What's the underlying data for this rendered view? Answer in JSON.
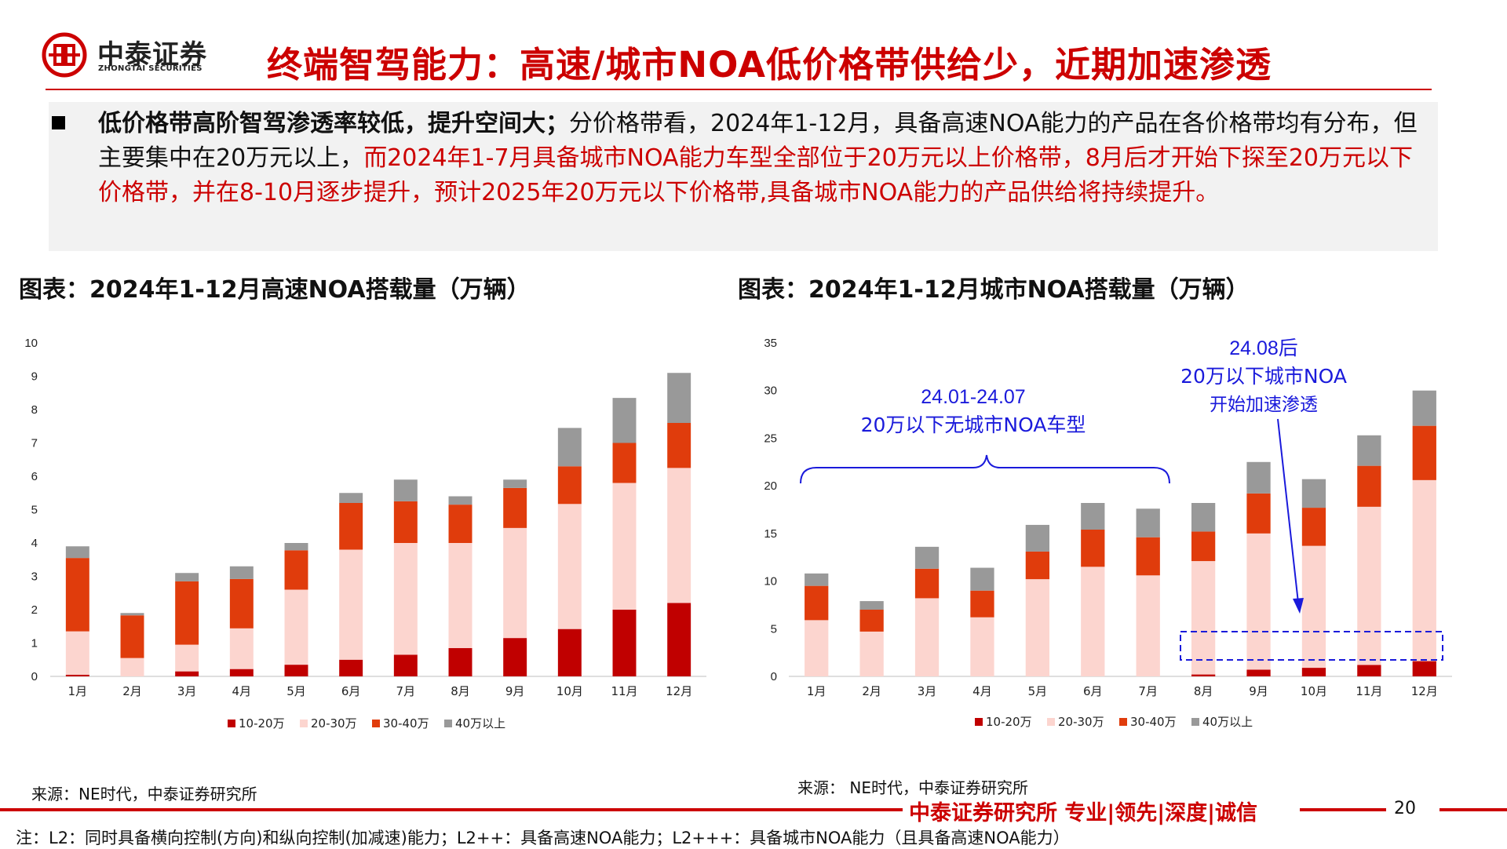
{
  "header": {
    "logo_cn": "中泰证券",
    "logo_en": "ZHONGTAI SECURITIES",
    "title": "终端智驾能力：高速/城市NOA低价格带供给少，近期加速渗透"
  },
  "summary": {
    "bold": "低价格带高阶智驾渗透率较低，提升空间大；",
    "normal": "分价格带看，2024年1-12月，具备高速NOA能力的产品在各价格带均有分布，但主要集中在20万元以上，",
    "red": "而2024年1-7月具备城市NOA能力车型全部位于20万元以上价格带，8月后才开始下探至20万元以下价格带，并在8-10月逐步提升，预计2025年20万元以下价格带,具备城市NOA能力的产品供给将持续提升。"
  },
  "charts": {
    "left_title": "图表：2024年1-12月高速NOA搭载量（万辆）",
    "right_title": "图表：2024年1-12月城市NOA搭载量（万辆）"
  },
  "annotations": {
    "brace_label_1": "24.01-24.07",
    "brace_label_2": "20万以下无城市NOA车型",
    "arrow_label_1": "24.08后",
    "arrow_label_2": "20万以下城市NOA",
    "arrow_label_3": "开始加速渗透"
  },
  "sources": {
    "left": "来源：NE时代，中泰证券研究所",
    "right": "来源： NE时代，中泰证券研究所"
  },
  "footer": {
    "brand": "中泰证券研究所 专业|领先|深度|诚信",
    "page": "20",
    "note": "注：L2：同时具备横向控制(方向)和纵向控制(加减速)能力；L2++：具备高速NOA能力；L2+++：具备城市NOA能力（且具备高速NOA能力）"
  },
  "colors": {
    "brand_red": "#cc0000",
    "s1": "#c00000",
    "s2": "#fcd5cf",
    "s3": "#e03c0c",
    "s4": "#999999",
    "annotation_blue": "#1a1adb"
  },
  "chart_data": [
    {
      "type": "bar",
      "stacked": true,
      "title": "图表：2024年1-12月高速NOA搭载量（万辆）",
      "categories": [
        "1月",
        "2月",
        "3月",
        "4月",
        "5月",
        "6月",
        "7月",
        "8月",
        "9月",
        "10月",
        "11月",
        "12月"
      ],
      "ylim": [
        0,
        10
      ],
      "yticks": [
        0,
        1,
        2,
        3,
        4,
        5,
        6,
        7,
        8,
        9,
        10
      ],
      "series": [
        {
          "name": "10-20万",
          "values": [
            0.05,
            0,
            0.15,
            0.22,
            0.35,
            0.5,
            0.65,
            0.85,
            1.15,
            1.42,
            2.0,
            2.2
          ]
        },
        {
          "name": "20-30万",
          "values": [
            1.3,
            0.55,
            0.8,
            1.22,
            2.25,
            3.3,
            3.35,
            3.15,
            3.3,
            3.75,
            3.8,
            4.05
          ]
        },
        {
          "name": "30-40万",
          "values": [
            2.2,
            1.28,
            1.9,
            1.48,
            1.18,
            1.4,
            1.25,
            1.15,
            1.2,
            1.13,
            1.2,
            1.35
          ]
        },
        {
          "name": "40万以上",
          "values": [
            0.35,
            0.07,
            0.25,
            0.38,
            0.22,
            0.3,
            0.65,
            0.25,
            0.25,
            1.15,
            1.35,
            1.5
          ]
        }
      ]
    },
    {
      "type": "bar",
      "stacked": true,
      "title": "图表：2024年1-12月城市NOA搭载量（万辆）",
      "categories": [
        "1月",
        "2月",
        "3月",
        "4月",
        "5月",
        "6月",
        "7月",
        "8月",
        "9月",
        "10月",
        "11月",
        "12月"
      ],
      "ylim": [
        0,
        35
      ],
      "yticks": [
        0,
        5,
        10,
        15,
        20,
        25,
        30,
        35
      ],
      "series": [
        {
          "name": "10-20万",
          "values": [
            0,
            0,
            0,
            0,
            0,
            0,
            0,
            0.2,
            0.7,
            0.9,
            1.2,
            1.6
          ]
        },
        {
          "name": "20-30万",
          "values": [
            5.9,
            4.7,
            8.2,
            6.2,
            10.2,
            11.5,
            10.6,
            11.9,
            14.3,
            12.8,
            16.6,
            19.0
          ]
        },
        {
          "name": "30-40万",
          "values": [
            3.6,
            2.3,
            3.1,
            2.8,
            2.9,
            3.9,
            4.0,
            3.1,
            4.2,
            4.0,
            4.3,
            5.7
          ]
        },
        {
          "name": "40万以上",
          "values": [
            1.3,
            0.9,
            2.3,
            2.4,
            2.8,
            2.8,
            3.0,
            3.0,
            3.3,
            3.0,
            3.2,
            3.7
          ]
        }
      ]
    }
  ]
}
